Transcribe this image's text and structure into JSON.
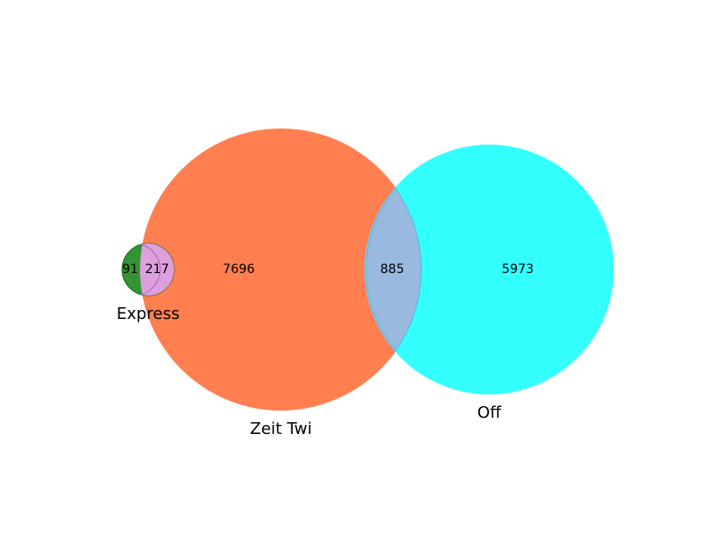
{
  "diagram": {
    "type": "venn",
    "sets": [
      {
        "id": "express",
        "label": "Express",
        "color": "#007f00"
      },
      {
        "id": "zeit",
        "label": "Zeit Twi",
        "color": "#ff7f50"
      },
      {
        "id": "off",
        "label": "Off",
        "color": "#33ffff"
      }
    ],
    "regions": [
      {
        "id": "express-only",
        "sets": [
          "express"
        ],
        "value": "91"
      },
      {
        "id": "express-zeit",
        "sets": [
          "express",
          "zeit"
        ],
        "value": "217",
        "color": "#dda0dd"
      },
      {
        "id": "zeit-only",
        "sets": [
          "zeit"
        ],
        "value": "7696"
      },
      {
        "id": "zeit-off",
        "sets": [
          "zeit",
          "off"
        ],
        "value": "885",
        "color": "#9ab9de"
      },
      {
        "id": "off-only",
        "sets": [
          "off"
        ],
        "value": "5973"
      }
    ]
  }
}
